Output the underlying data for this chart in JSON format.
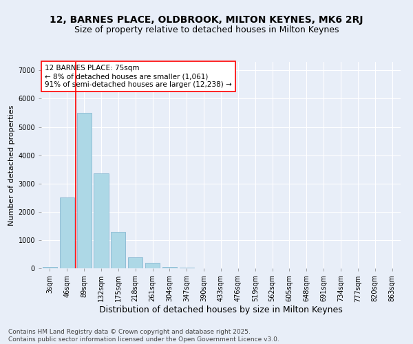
{
  "title_line1": "12, BARNES PLACE, OLDBROOK, MILTON KEYNES, MK6 2RJ",
  "title_line2": "Size of property relative to detached houses in Milton Keynes",
  "xlabel": "Distribution of detached houses by size in Milton Keynes",
  "ylabel": "Number of detached properties",
  "categories": [
    "3sqm",
    "46sqm",
    "89sqm",
    "132sqm",
    "175sqm",
    "218sqm",
    "261sqm",
    "304sqm",
    "347sqm",
    "390sqm",
    "433sqm",
    "476sqm",
    "519sqm",
    "562sqm",
    "605sqm",
    "648sqm",
    "691sqm",
    "734sqm",
    "777sqm",
    "820sqm",
    "863sqm"
  ],
  "values": [
    40,
    2500,
    5500,
    3350,
    1300,
    380,
    190,
    60,
    30,
    0,
    0,
    0,
    0,
    0,
    0,
    0,
    0,
    0,
    0,
    0,
    0
  ],
  "bar_color": "#add8e6",
  "bar_edge_color": "#7aafcc",
  "vline_x": 1.5,
  "vline_color": "red",
  "annotation_text": "12 BARNES PLACE: 75sqm\n← 8% of detached houses are smaller (1,061)\n91% of semi-detached houses are larger (12,238) →",
  "annotation_box_color": "white",
  "annotation_box_edge_color": "red",
  "ylim": [
    0,
    7300
  ],
  "yticks": [
    0,
    1000,
    2000,
    3000,
    4000,
    5000,
    6000,
    7000
  ],
  "background_color": "#e8eef8",
  "plot_background_color": "#e8eef8",
  "grid_color": "white",
  "footer_line1": "Contains HM Land Registry data © Crown copyright and database right 2025.",
  "footer_line2": "Contains public sector information licensed under the Open Government Licence v3.0.",
  "title_fontsize": 10,
  "subtitle_fontsize": 9,
  "xlabel_fontsize": 9,
  "ylabel_fontsize": 8,
  "tick_fontsize": 7,
  "annotation_fontsize": 7.5,
  "footer_fontsize": 6.5
}
